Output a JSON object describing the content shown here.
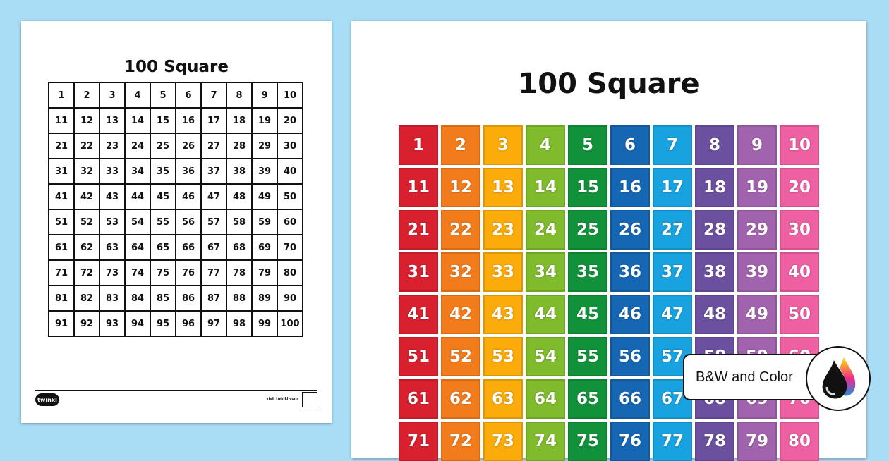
{
  "left_page": {
    "title": "100 Square",
    "numbers": [
      1,
      2,
      3,
      4,
      5,
      6,
      7,
      8,
      9,
      10,
      11,
      12,
      13,
      14,
      15,
      16,
      17,
      18,
      19,
      20,
      21,
      22,
      23,
      24,
      25,
      26,
      27,
      28,
      29,
      30,
      31,
      32,
      33,
      34,
      35,
      36,
      37,
      38,
      39,
      40,
      41,
      42,
      43,
      44,
      45,
      46,
      47,
      48,
      49,
      50,
      51,
      52,
      53,
      54,
      55,
      56,
      57,
      58,
      59,
      60,
      61,
      62,
      63,
      64,
      65,
      66,
      67,
      68,
      69,
      70,
      71,
      72,
      73,
      74,
      75,
      76,
      77,
      78,
      79,
      80,
      81,
      82,
      83,
      84,
      85,
      86,
      87,
      88,
      89,
      90,
      91,
      92,
      93,
      94,
      95,
      96,
      97,
      98,
      99,
      100
    ],
    "footer_logo": "twinkl",
    "footer_site": "visit twinkl.com"
  },
  "right_page": {
    "title": "100 Square",
    "numbers": [
      1,
      2,
      3,
      4,
      5,
      6,
      7,
      8,
      9,
      10,
      11,
      12,
      13,
      14,
      15,
      16,
      17,
      18,
      19,
      20,
      21,
      22,
      23,
      24,
      25,
      26,
      27,
      28,
      29,
      30,
      31,
      32,
      33,
      34,
      35,
      36,
      37,
      38,
      39,
      40,
      41,
      42,
      43,
      44,
      45,
      46,
      47,
      48,
      49,
      50,
      51,
      52,
      53,
      54,
      55,
      56,
      57,
      58,
      59,
      60,
      61,
      62,
      63,
      64,
      65,
      66,
      67,
      68,
      69,
      70,
      71,
      72,
      73,
      74,
      75,
      76,
      77,
      78,
      79,
      80
    ],
    "column_colors": [
      "#d9202f",
      "#f27c1c",
      "#fbab0a",
      "#80bb2d",
      "#11923a",
      "#1566b3",
      "#18a2e0",
      "#6c50a0",
      "#a263ae",
      "#ef60a3"
    ]
  },
  "badge": {
    "label": "B&W and Color",
    "icon": "ink-drops-icon"
  }
}
